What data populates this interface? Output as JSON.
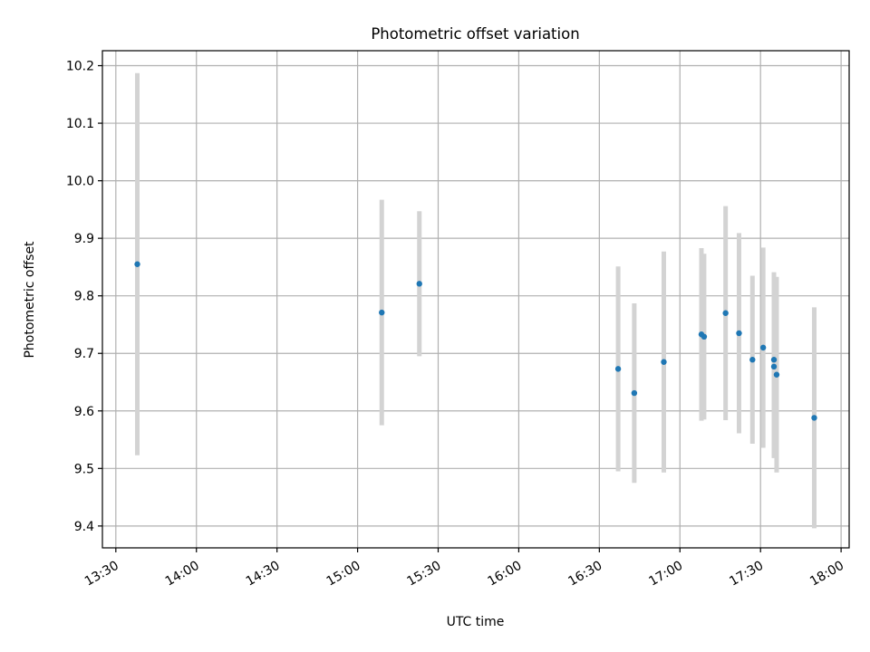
{
  "chart_data": {
    "type": "scatter",
    "title": "Photometric offset variation",
    "xlabel": "UTC time",
    "ylabel": "Photometric offset",
    "x_unit": "time_of_day",
    "xlim": [
      "13:25",
      "18:03"
    ],
    "ylim": [
      9.362,
      10.226
    ],
    "xticks": [
      "13:30",
      "14:00",
      "14:30",
      "15:00",
      "15:30",
      "16:00",
      "16:30",
      "17:00",
      "17:30",
      "18:00"
    ],
    "yticks": [
      "9.4",
      "9.5",
      "9.6",
      "9.7",
      "9.8",
      "9.9",
      "10.0",
      "10.1",
      "10.2"
    ],
    "grid": true,
    "legend": false,
    "colors": {
      "points": "#1f77b4",
      "errorbars": "#d3d3d3",
      "grid": "#b0b0b0"
    },
    "points": [
      {
        "x": "13:38",
        "y": 9.855,
        "ylow": 9.523,
        "yhigh": 10.187
      },
      {
        "x": "15:09",
        "y": 9.771,
        "ylow": 9.575,
        "yhigh": 9.967
      },
      {
        "x": "15:23",
        "y": 9.821,
        "ylow": 9.695,
        "yhigh": 9.947
      },
      {
        "x": "16:37",
        "y": 9.673,
        "ylow": 9.495,
        "yhigh": 9.851
      },
      {
        "x": "16:43",
        "y": 9.631,
        "ylow": 9.475,
        "yhigh": 9.787
      },
      {
        "x": "16:54",
        "y": 9.685,
        "ylow": 9.493,
        "yhigh": 9.877
      },
      {
        "x": "17:08",
        "y": 9.733,
        "ylow": 9.583,
        "yhigh": 9.883
      },
      {
        "x": "17:09",
        "y": 9.729,
        "ylow": 9.585,
        "yhigh": 9.873
      },
      {
        "x": "17:17",
        "y": 9.77,
        "ylow": 9.584,
        "yhigh": 9.956
      },
      {
        "x": "17:22",
        "y": 9.735,
        "ylow": 9.561,
        "yhigh": 9.909
      },
      {
        "x": "17:27",
        "y": 9.689,
        "ylow": 9.543,
        "yhigh": 9.835
      },
      {
        "x": "17:31",
        "y": 9.71,
        "ylow": 9.536,
        "yhigh": 9.884
      },
      {
        "x": "17:35",
        "y": 9.689,
        "ylow": 9.537,
        "yhigh": 9.841
      },
      {
        "x": "17:35",
        "y": 9.677,
        "ylow": 9.518,
        "yhigh": 9.836
      },
      {
        "x": "17:36",
        "y": 9.663,
        "ylow": 9.493,
        "yhigh": 9.833
      },
      {
        "x": "17:50",
        "y": 9.588,
        "ylow": 9.396,
        "yhigh": 9.78
      }
    ]
  }
}
